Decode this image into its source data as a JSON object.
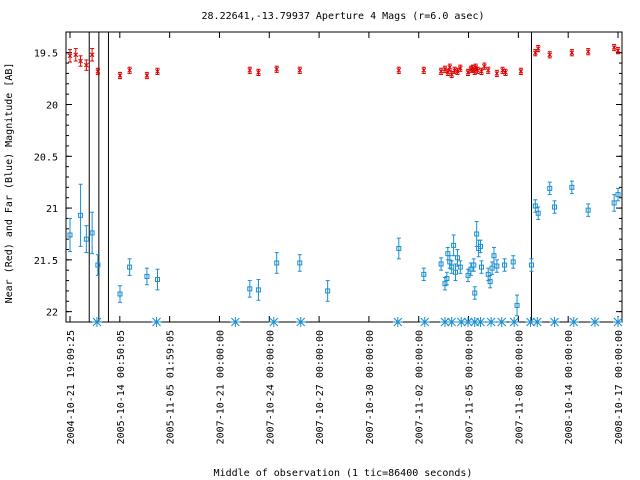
{
  "chart_data": {
    "type": "scatter",
    "title": "28.22641,-13.79937   Aperture 4 Mags (r=6.0 asec)",
    "xlabel": "Middle of observation (1 tic=86400 seconds)",
    "ylabel": "Near (Red) and Far (Blue) Magnitude [AB]",
    "ylim": [
      22.1,
      19.3
    ],
    "y_inverted": true,
    "y_ticks": [
      19.5,
      20,
      20.5,
      21,
      21.5,
      22
    ],
    "y_tick_labels": [
      "19.5",
      "20",
      "20.5",
      "21",
      "21.5",
      "22"
    ],
    "x_tick_labels": [
      "2004-10-21 19:09:25",
      "2005-10-14 00:50:05",
      "2005-11-05 01:59:05",
      "2007-10-21 00:00:00",
      "2007-10-24 00:00:00",
      "2007-10-27 00:00:00",
      "2007-10-30 00:00:00",
      "2007-11-02 00:00:00",
      "2007-11-05 00:00:00",
      "2007-11-08 00:00:00",
      "2008-10-14 00:00:00",
      "2008-10-17 00:00:00"
    ],
    "grid": false,
    "series": [
      {
        "color": "#dd0000",
        "marker": "x",
        "values": [
          [
            0.0,
            19.53,
            0.06
          ],
          [
            0.3,
            19.52,
            0.06
          ],
          [
            0.55,
            19.58,
            0.05
          ],
          [
            0.85,
            19.62,
            0.05
          ],
          [
            1.15,
            19.52,
            0.06
          ],
          [
            1.45,
            19.68,
            0.03
          ],
          [
            2.6,
            19.72,
            0.03
          ],
          [
            3.1,
            19.67,
            0.03
          ],
          [
            4.0,
            19.72,
            0.03
          ],
          [
            4.55,
            19.68,
            0.03
          ],
          [
            9.35,
            19.67,
            0.03
          ],
          [
            9.8,
            19.69,
            0.03
          ],
          [
            10.75,
            19.66,
            0.03
          ],
          [
            11.95,
            19.67,
            0.03
          ],
          [
            17.1,
            19.67,
            0.03
          ],
          [
            18.4,
            19.67,
            0.03
          ],
          [
            19.3,
            19.68,
            0.03
          ],
          [
            19.5,
            19.66,
            0.03
          ],
          [
            19.65,
            19.69,
            0.03
          ],
          [
            19.75,
            19.64,
            0.03
          ],
          [
            19.85,
            19.71,
            0.03
          ],
          [
            20.0,
            19.67,
            0.03
          ],
          [
            20.15,
            19.68,
            0.03
          ],
          [
            20.3,
            19.65,
            0.03
          ],
          [
            20.7,
            19.69,
            0.03
          ],
          [
            20.85,
            19.66,
            0.03
          ],
          [
            20.95,
            19.65,
            0.03
          ],
          [
            21.05,
            19.68,
            0.03
          ],
          [
            21.1,
            19.64,
            0.03
          ],
          [
            21.2,
            19.67,
            0.03
          ],
          [
            21.4,
            19.68,
            0.03
          ],
          [
            21.55,
            19.63,
            0.03
          ],
          [
            21.75,
            19.67,
            0.03
          ],
          [
            22.2,
            19.7,
            0.03
          ],
          [
            22.5,
            19.67,
            0.03
          ],
          [
            22.65,
            19.69,
            0.03
          ],
          [
            23.45,
            19.68,
            0.03
          ],
          [
            24.2,
            19.5,
            0.03
          ],
          [
            24.35,
            19.46,
            0.03
          ],
          [
            24.95,
            19.52,
            0.03
          ],
          [
            26.1,
            19.5,
            0.03
          ],
          [
            26.95,
            19.49,
            0.03
          ],
          [
            28.3,
            19.45,
            0.03
          ],
          [
            28.5,
            19.48,
            0.03
          ]
        ]
      },
      {
        "color": "#1a8fd0",
        "marker": "square",
        "values": [
          [
            0.0,
            21.26,
            0.16
          ],
          [
            0.55,
            21.07,
            0.3
          ],
          [
            0.85,
            21.3,
            0.13
          ],
          [
            1.15,
            21.24,
            0.2
          ],
          [
            1.45,
            21.55,
            0.1
          ],
          [
            2.6,
            21.83,
            0.08
          ],
          [
            3.1,
            21.57,
            0.08
          ],
          [
            4.0,
            21.66,
            0.08
          ],
          [
            4.55,
            21.69,
            0.1
          ],
          [
            9.35,
            21.78,
            0.08
          ],
          [
            9.8,
            21.79,
            0.1
          ],
          [
            10.75,
            21.53,
            0.1
          ],
          [
            11.95,
            21.53,
            0.08
          ],
          [
            13.4,
            21.8,
            0.1
          ],
          [
            17.1,
            21.39,
            0.1
          ],
          [
            18.4,
            21.64,
            0.06
          ],
          [
            19.3,
            21.54,
            0.06
          ],
          [
            19.5,
            21.73,
            0.06
          ],
          [
            19.6,
            21.68,
            0.06
          ],
          [
            19.65,
            21.44,
            0.06
          ],
          [
            19.75,
            21.52,
            0.06
          ],
          [
            19.85,
            21.57,
            0.06
          ],
          [
            19.95,
            21.36,
            0.1
          ],
          [
            20.05,
            21.62,
            0.08
          ],
          [
            20.15,
            21.48,
            0.08
          ],
          [
            20.3,
            21.57,
            0.06
          ],
          [
            20.7,
            21.65,
            0.06
          ],
          [
            20.85,
            21.59,
            0.06
          ],
          [
            21.0,
            21.55,
            0.06
          ],
          [
            21.05,
            21.82,
            0.06
          ],
          [
            21.15,
            21.25,
            0.12
          ],
          [
            21.25,
            21.39,
            0.08
          ],
          [
            21.35,
            21.37,
            0.06
          ],
          [
            21.4,
            21.57,
            0.06
          ],
          [
            21.75,
            21.64,
            0.06
          ],
          [
            21.85,
            21.71,
            0.06
          ],
          [
            21.95,
            21.58,
            0.06
          ],
          [
            22.05,
            21.46,
            0.08
          ],
          [
            22.2,
            21.56,
            0.06
          ],
          [
            22.6,
            21.55,
            0.06
          ],
          [
            23.05,
            21.52,
            0.06
          ],
          [
            23.25,
            21.94,
            0.1
          ],
          [
            24.0,
            21.55,
            0.06
          ],
          [
            24.2,
            20.98,
            0.06
          ],
          [
            24.35,
            21.05,
            0.06
          ],
          [
            24.95,
            20.81,
            0.06
          ],
          [
            25.2,
            20.99,
            0.06
          ],
          [
            26.1,
            20.8,
            0.06
          ],
          [
            26.95,
            21.02,
            0.06
          ],
          [
            28.3,
            20.95,
            0.08
          ],
          [
            28.5,
            20.87,
            0.06
          ]
        ]
      }
    ],
    "markers": {
      "color": "#1a8fd0",
      "y": 22.1,
      "x": [
        1.4,
        4.5,
        8.6,
        10.6,
        12.0,
        17.05,
        18.45,
        19.5,
        19.85,
        20.35,
        20.7,
        21.05,
        21.35,
        21.9,
        22.45,
        23.1,
        23.95,
        24.3,
        25.2,
        26.2,
        27.3,
        28.5
      ]
    },
    "vertical_lines_x": [
      1.0,
      1.5,
      2.0,
      24.0
    ]
  }
}
